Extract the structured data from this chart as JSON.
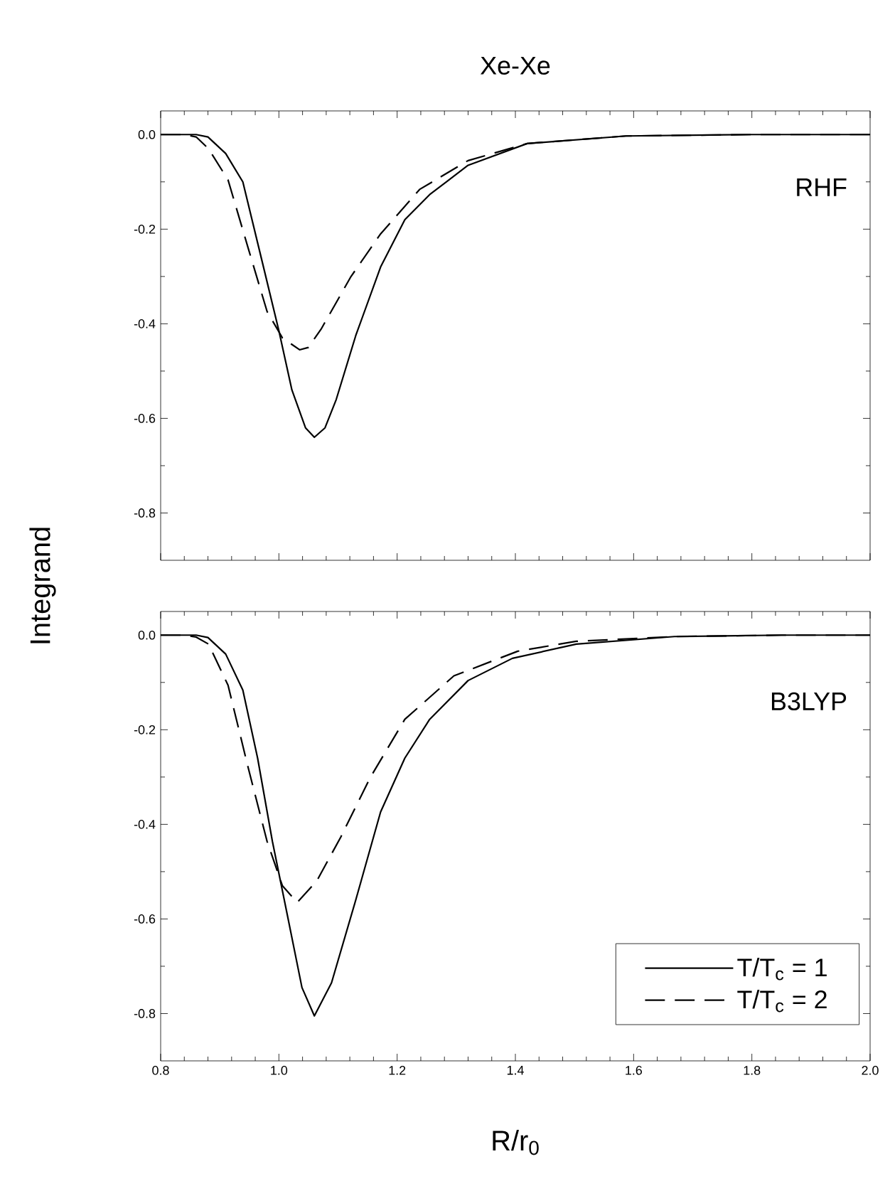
{
  "chart_data": [
    {
      "type": "line",
      "title": "Xe-Xe",
      "annotations": [
        "RHF"
      ],
      "tick_labels": "y",
      "xlim": [
        0.8,
        2.0
      ],
      "ylim": [
        -0.9,
        0.05
      ],
      "xticks": [
        {
          "value": 0.8,
          "label": null
        },
        {
          "value": 1.0,
          "label": null
        },
        {
          "value": 1.2,
          "label": null
        },
        {
          "value": 1.4,
          "label": null
        },
        {
          "value": 1.6,
          "label": null
        },
        {
          "value": 1.8,
          "label": null
        },
        {
          "value": 2.0,
          "label": null
        }
      ],
      "yticks": [
        {
          "value": 0.0,
          "label": "0.0"
        },
        {
          "value": -0.2,
          "label": "-0.2"
        },
        {
          "value": -0.4,
          "label": "-0.4"
        },
        {
          "value": -0.6,
          "label": "-0.6"
        },
        {
          "value": -0.8,
          "label": "-0.8"
        }
      ],
      "series": [
        {
          "color": "#000000",
          "line_style": "solid",
          "x": [
            0.8,
            0.86,
            0.88,
            0.91,
            0.939,
            0.972,
            1.0,
            1.022,
            1.045,
            1.06,
            1.078,
            1.097,
            1.13,
            1.172,
            1.213,
            1.255,
            1.32,
            1.42,
            1.587,
            1.8,
            2.0
          ],
          "values": [
            0.0,
            0.0,
            -0.005,
            -0.04,
            -0.1,
            -0.27,
            -0.415,
            -0.54,
            -0.62,
            -0.64,
            -0.62,
            -0.56,
            -0.425,
            -0.28,
            -0.18,
            -0.127,
            -0.065,
            -0.019,
            -0.003,
            0.0,
            0.0
          ]
        },
        {
          "color": "#000000",
          "line_style": "dashed",
          "x": [
            0.8,
            0.84,
            0.86,
            0.881,
            0.914,
            0.948,
            0.98,
            1.006,
            1.035,
            1.05,
            1.072,
            1.122,
            1.172,
            1.238,
            1.32,
            1.42,
            1.587,
            1.8,
            2.0
          ],
          "values": [
            0.0,
            0.0,
            -0.005,
            -0.03,
            -0.096,
            -0.24,
            -0.374,
            -0.43,
            -0.455,
            -0.45,
            -0.41,
            -0.3,
            -0.21,
            -0.116,
            -0.055,
            -0.019,
            -0.003,
            0.0,
            0.0
          ]
        }
      ]
    },
    {
      "type": "line",
      "annotations": [
        "B3LYP"
      ],
      "xlabel": "R/r$_{0}$",
      "ylabel": "Integrand",
      "legend": "bottom right",
      "xlim": [
        0.8,
        2.0
      ],
      "ylim": [
        -0.9,
        0.05
      ],
      "xticks": [
        {
          "value": 0.8,
          "label": "0.8"
        },
        {
          "value": 1.0,
          "label": "1.0"
        },
        {
          "value": 1.2,
          "label": "1.2"
        },
        {
          "value": 1.4,
          "label": "1.4"
        },
        {
          "value": 1.6,
          "label": "1.6"
        },
        {
          "value": 1.8,
          "label": "1.8"
        },
        {
          "value": 2.0,
          "label": "2.0"
        }
      ],
      "yticks": [
        {
          "value": 0.0,
          "label": "0.0"
        },
        {
          "value": -0.2,
          "label": "-0.2"
        },
        {
          "value": -0.4,
          "label": "-0.4"
        },
        {
          "value": -0.6,
          "label": "-0.6"
        },
        {
          "value": -0.8,
          "label": "-0.8"
        }
      ],
      "series": [
        {
          "name": "T/T$_{c}$ = 1",
          "color": "#000000",
          "line_style": "solid",
          "x": [
            0.8,
            0.86,
            0.88,
            0.91,
            0.939,
            0.964,
            0.989,
            1.014,
            1.039,
            1.06,
            1.089,
            1.13,
            1.172,
            1.213,
            1.255,
            1.32,
            1.395,
            1.503,
            1.669,
            1.85,
            2.0
          ],
          "values": [
            0.0,
            0.0,
            -0.005,
            -0.04,
            -0.116,
            -0.26,
            -0.436,
            -0.59,
            -0.745,
            -0.805,
            -0.735,
            -0.56,
            -0.374,
            -0.26,
            -0.178,
            -0.096,
            -0.049,
            -0.019,
            -0.003,
            0.0,
            0.0
          ]
        },
        {
          "name": "T/T$_{c}$ = 2",
          "color": "#000000",
          "line_style": "dashed",
          "x": [
            0.8,
            0.84,
            0.86,
            0.881,
            0.914,
            0.948,
            0.98,
            1.006,
            1.031,
            1.064,
            1.105,
            1.155,
            1.213,
            1.296,
            1.404,
            1.503,
            1.669,
            1.85,
            2.0
          ],
          "values": [
            0.0,
            0.0,
            -0.004,
            -0.019,
            -0.106,
            -0.28,
            -0.436,
            -0.53,
            -0.565,
            -0.52,
            -0.426,
            -0.3,
            -0.178,
            -0.086,
            -0.034,
            -0.013,
            -0.003,
            0.0,
            0.0
          ]
        }
      ]
    }
  ]
}
